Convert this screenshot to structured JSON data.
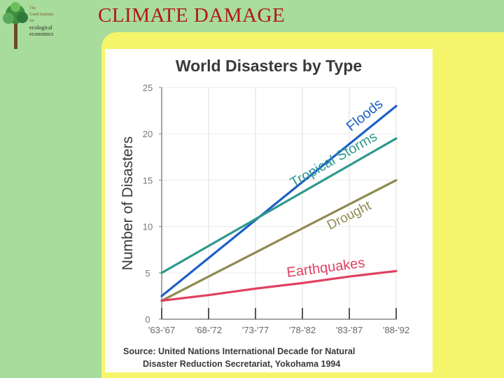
{
  "slide": {
    "title": "CLIMATE DAMAGE",
    "logo": {
      "line1": "The",
      "line2": "Gund Institute",
      "line3": "for",
      "line4": "ecological",
      "line5": "economics"
    },
    "colors": {
      "background": "#a8dc9c",
      "title": "#b01818",
      "panel": "#f4f56a"
    }
  },
  "chart_data": {
    "type": "line",
    "title": "World Disasters by Type",
    "xlabel": "",
    "ylabel": "Number of Disasters",
    "categories": [
      "'63-'67",
      "'68-'72",
      "'73-'77",
      "'78-'82",
      "'83-'87",
      "'88-'92"
    ],
    "yticks": [
      "0",
      "5",
      "10",
      "15",
      "20",
      "25"
    ],
    "ylim": [
      0,
      25
    ],
    "grid": true,
    "series": [
      {
        "name": "Floods",
        "color": "#1f5fc8",
        "values": [
          2.5,
          6.6,
          10.7,
          14.8,
          18.9,
          23.0
        ]
      },
      {
        "name": "Tropical Storms",
        "color": "#2e9a8c",
        "values": [
          5.0,
          7.9,
          10.8,
          13.7,
          16.6,
          19.5
        ]
      },
      {
        "name": "Drought",
        "color": "#8f8a50",
        "values": [
          2.0,
          4.6,
          7.2,
          9.8,
          12.4,
          15.0
        ]
      },
      {
        "name": "Earthquakes",
        "color": "#e04060",
        "values": [
          2.0,
          2.6,
          3.3,
          3.9,
          4.6,
          5.2
        ]
      }
    ],
    "source_line1": "Source: United Nations International Decade for Natural",
    "source_line2": "Disaster Reduction Secretariat, Yokohama 1994"
  }
}
